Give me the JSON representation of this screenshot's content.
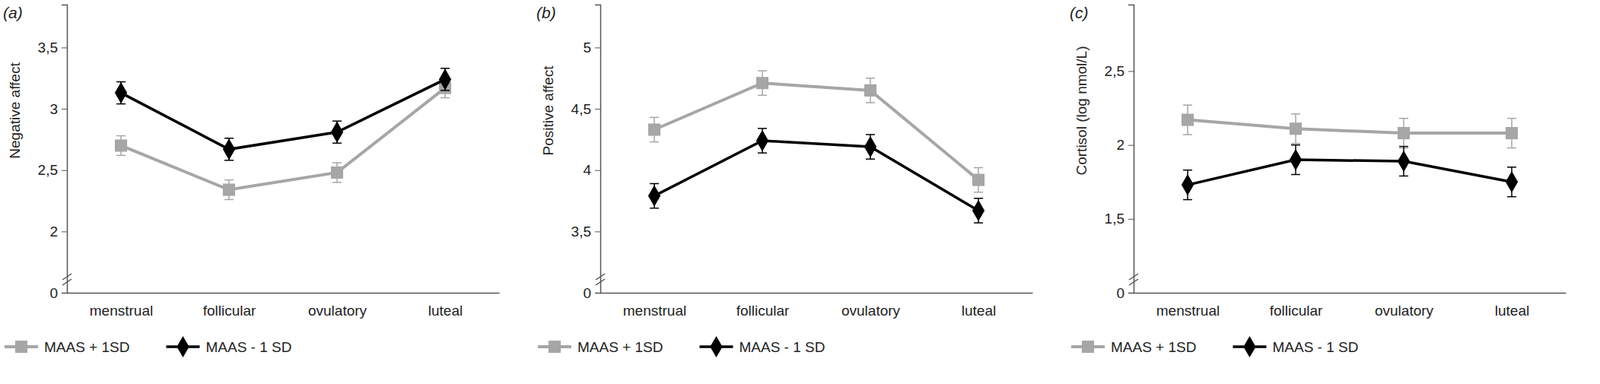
{
  "chart_data": [
    {
      "type": "line",
      "title": "(a)",
      "y_label": "Negative affect",
      "categories": [
        "menstrual",
        "follicular",
        "ovulatory",
        "luteal"
      ],
      "ylim": [
        0,
        3.85
      ],
      "yticks": [
        0,
        2,
        {
          "value": 2.5,
          "label": "2,5"
        },
        3,
        {
          "value": 3.5,
          "label": "3,5"
        }
      ],
      "legend": "bottom",
      "series": [
        {
          "name": "MAAS + 1SD",
          "color": "#a6a6a6",
          "marker": "square",
          "values": [
            2.7,
            2.34,
            2.48,
            3.17
          ],
          "errors": [
            0.08,
            0.08,
            0.08,
            0.08
          ]
        },
        {
          "name": "MAAS - 1 SD",
          "color": "#000000",
          "marker": "diamond",
          "values": [
            3.13,
            2.67,
            2.81,
            3.24
          ],
          "errors": [
            0.09,
            0.09,
            0.09,
            0.09
          ]
        }
      ]
    },
    {
      "type": "line",
      "title": "(b)",
      "y_label": "Positive affect",
      "categories": [
        "menstrual",
        "follicular",
        "ovulatory",
        "luteal"
      ],
      "ylim": [
        0,
        5.35
      ],
      "yticks": [
        0,
        {
          "value": 3.5,
          "label": "3,5"
        },
        4,
        {
          "value": 4.5,
          "label": "4,5"
        },
        5
      ],
      "legend": "bottom",
      "series": [
        {
          "name": "MAAS + 1SD",
          "color": "#a6a6a6",
          "marker": "square",
          "values": [
            4.33,
            4.71,
            4.65,
            3.92
          ],
          "errors": [
            0.1,
            0.1,
            0.1,
            0.1
          ]
        },
        {
          "name": "MAAS - 1 SD",
          "color": "#000000",
          "marker": "diamond",
          "values": [
            3.79,
            4.24,
            4.19,
            3.67
          ],
          "errors": [
            0.1,
            0.1,
            0.1,
            0.1
          ]
        }
      ]
    },
    {
      "type": "line",
      "title": "(c)",
      "y_label": "Cortisol (log nmol/L)",
      "categories": [
        "menstrual",
        "follicular",
        "ovulatory",
        "luteal"
      ],
      "ylim": [
        0,
        2.95
      ],
      "yticks": [
        0,
        {
          "value": 1.5,
          "label": "1,5"
        },
        2,
        {
          "value": 2.5,
          "label": "2,5"
        }
      ],
      "legend": "bottom",
      "series": [
        {
          "name": "MAAS + 1SD",
          "color": "#a6a6a6",
          "marker": "square",
          "values": [
            2.17,
            2.11,
            2.08,
            2.08
          ],
          "errors": [
            0.1,
            0.1,
            0.1,
            0.1
          ]
        },
        {
          "name": "MAAS - 1 SD",
          "color": "#000000",
          "marker": "diamond",
          "values": [
            1.73,
            1.9,
            1.89,
            1.75
          ],
          "errors": [
            0.1,
            0.1,
            0.1,
            0.1
          ]
        }
      ]
    }
  ]
}
